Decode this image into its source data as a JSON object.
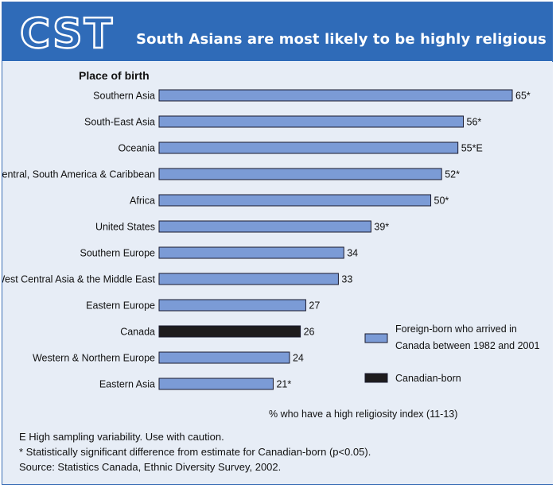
{
  "header": {
    "logo_text": "CST",
    "title": "South Asians are most likely to be highly religious"
  },
  "chart_data": {
    "type": "bar",
    "orientation": "horizontal",
    "title": "South Asians are most likely to be highly religious",
    "ylabel": "Place of birth",
    "xlabel": "% who have a high religiosity index (11-13)",
    "xlim": [
      0,
      65
    ],
    "categories": [
      "Southern Asia",
      "South-East Asia",
      "Oceania",
      "Central, South America & Caribbean",
      "Africa",
      "United States",
      "Southern Europe",
      "West Central Asia & the Middle East",
      "Eastern Europe",
      "Canada",
      "Western & Northern Europe",
      "Eastern Asia"
    ],
    "values": [
      65,
      56,
      55,
      52,
      50,
      39,
      34,
      33,
      27,
      26,
      24,
      21
    ],
    "value_labels": [
      "65*",
      "56*",
      "55*E",
      "52*",
      "50*",
      "39*",
      "34",
      "33",
      "27",
      "26",
      "24",
      "21*"
    ],
    "series_group": [
      "foreign",
      "foreign",
      "foreign",
      "foreign",
      "foreign",
      "foreign",
      "foreign",
      "foreign",
      "foreign",
      "canadian",
      "foreign",
      "foreign"
    ],
    "legend": [
      {
        "key": "foreign",
        "label_lines": [
          "Foreign-born who arrived in",
          "Canada between 1982 and 2001"
        ],
        "color": "#7b9bd6"
      },
      {
        "key": "canadian",
        "label_lines": [
          "Canadian-born"
        ],
        "color": "#1e1c1d"
      }
    ],
    "legend_position": "bottom-right",
    "grid": false
  },
  "notes": {
    "e_note": "E  High sampling variability. Use with caution.",
    "star_note": "*  Statistically significant difference from estimate for Canadian-born (p<0.05).",
    "source": "Source: Statistics Canada, Ethnic Diversity Survey, 2002."
  },
  "colors": {
    "header_bg": "#2f6bb8",
    "panel_bg": "#e7edf6",
    "bar_foreign": "#7b9bd6",
    "bar_canadian": "#1e1c1d",
    "bar_outline": "#1a1a2e"
  }
}
